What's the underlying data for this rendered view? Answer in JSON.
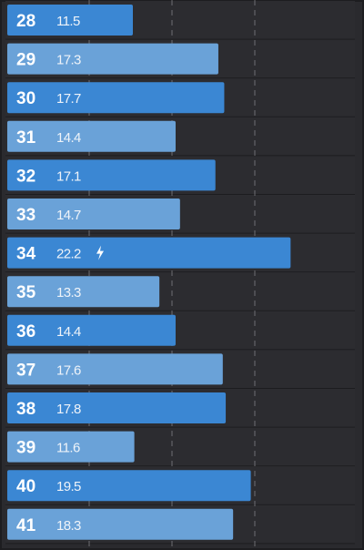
{
  "chart_data": {
    "type": "bar",
    "orientation": "horizontal",
    "categories": [
      "28",
      "29",
      "30",
      "31",
      "32",
      "33",
      "34",
      "35",
      "36",
      "37",
      "38",
      "39",
      "40",
      "41"
    ],
    "values": [
      11.5,
      17.3,
      17.7,
      14.4,
      17.1,
      14.7,
      22.2,
      13.3,
      14.4,
      17.6,
      17.8,
      11.6,
      19.5,
      18.3
    ],
    "bar_colors": [
      "#3b87d3",
      "#6aa2d8",
      "#3b87d3",
      "#6aa2d8",
      "#3b87d3",
      "#6aa2d8",
      "#3b87d3",
      "#6aa2d8",
      "#3b87d3",
      "#6aa2d8",
      "#3b87d3",
      "#6aa2d8",
      "#3b87d3",
      "#6aa2d8"
    ],
    "markers": [
      {
        "category": "34",
        "icon": "lightning-bolt-icon"
      }
    ],
    "grid": true,
    "colors": {
      "background": "#2a2a2e",
      "bar_primary": "#3b87d3",
      "bar_secondary": "#6aa2d8",
      "text": "#ffffff"
    }
  }
}
